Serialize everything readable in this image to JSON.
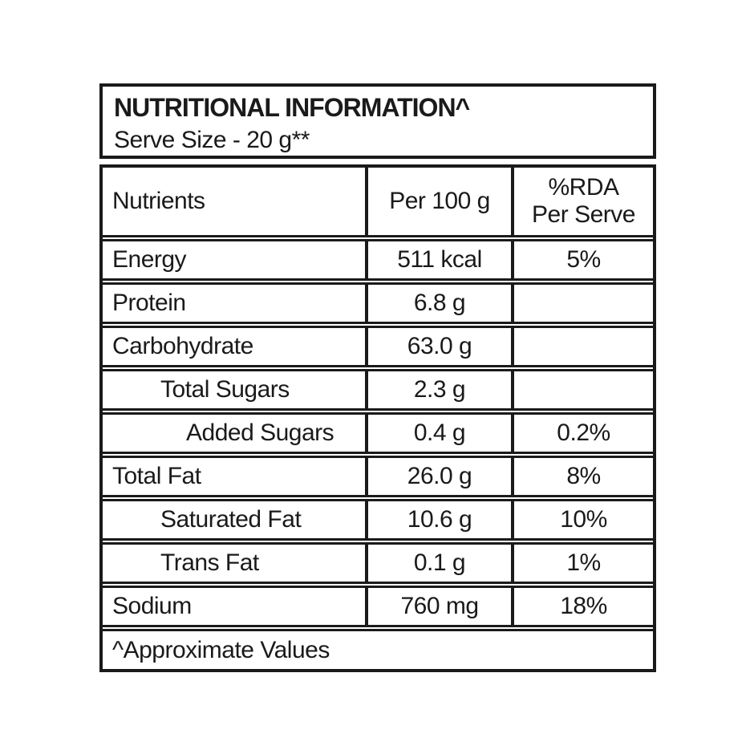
{
  "label": {
    "title": "NUTRITIONAL INFORMATION^",
    "serve_size": "Serve Size - 20 g**",
    "header": {
      "nutrients": "Nutrients",
      "per_100g": "Per 100 g",
      "rda_line1": "%RDA",
      "rda_line2": "Per Serve"
    },
    "rows": [
      {
        "nutrient": "Energy",
        "per_100g": "511 kcal",
        "rda": "5%"
      },
      {
        "nutrient": "Protein",
        "per_100g": "6.8 g",
        "rda": ""
      },
      {
        "nutrient": "Carbohydrate",
        "per_100g": "63.0 g",
        "rda": ""
      },
      {
        "nutrient": "Total Sugars",
        "per_100g": "2.3 g",
        "rda": ""
      },
      {
        "nutrient": "Added Sugars",
        "per_100g": "0.4 g",
        "rda": "0.2%"
      },
      {
        "nutrient": "Total Fat",
        "per_100g": "26.0 g",
        "rda": "8%"
      },
      {
        "nutrient": "Saturated Fat",
        "per_100g": "10.6 g",
        "rda": "10%"
      },
      {
        "nutrient": "Trans Fat",
        "per_100g": "0.1 g",
        "rda": "1%"
      },
      {
        "nutrient": "Sodium",
        "per_100g": "760 mg",
        "rda": "18%"
      }
    ],
    "footnote": "^Approximate Values"
  },
  "colors": {
    "text": "#1a1a1a",
    "border": "#1a1a1a",
    "background": "#ffffff"
  }
}
